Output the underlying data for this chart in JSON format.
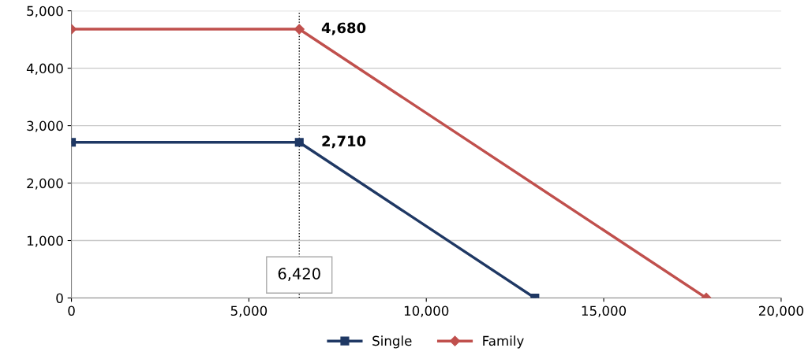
{
  "chart_data": {
    "type": "line",
    "series": [
      {
        "name": "Single",
        "color": "#1f3864",
        "marker": "square",
        "x": [
          0,
          6420,
          13060
        ],
        "values": [
          2710,
          2710,
          0
        ]
      },
      {
        "name": "Family",
        "color": "#c0504d",
        "marker": "diamond",
        "x": [
          0,
          6420,
          17890
        ],
        "values": [
          4680,
          4680,
          0
        ]
      }
    ],
    "xlim": [
      0,
      20000
    ],
    "xticks": [
      {
        "value": 0,
        "label": "0"
      },
      {
        "value": 5000,
        "label": "5,000"
      },
      {
        "value": 10000,
        "label": "10,000"
      },
      {
        "value": 15000,
        "label": "15,000"
      },
      {
        "value": 20000,
        "label": "20,000"
      }
    ],
    "ylim": [
      0,
      5000
    ],
    "yticks": [
      {
        "value": 0,
        "label": "0"
      },
      {
        "value": 1000,
        "label": "1,000"
      },
      {
        "value": 2000,
        "label": "2,000"
      },
      {
        "value": 3000,
        "label": "3,000"
      },
      {
        "value": 4000,
        "label": "4,000"
      },
      {
        "value": 5000,
        "label": "5,000"
      }
    ],
    "annotations": [
      {
        "text": "4,680",
        "x": 6420,
        "y": 4680
      },
      {
        "text": "2,710",
        "x": 6420,
        "y": 2710
      }
    ],
    "ref_lines": [
      {
        "axis": "x",
        "value": 6420,
        "label": "6,420",
        "line_style": "dotted",
        "color": "#000000"
      }
    ],
    "grid": "y",
    "legend": "bottom",
    "line_style": "solid"
  }
}
